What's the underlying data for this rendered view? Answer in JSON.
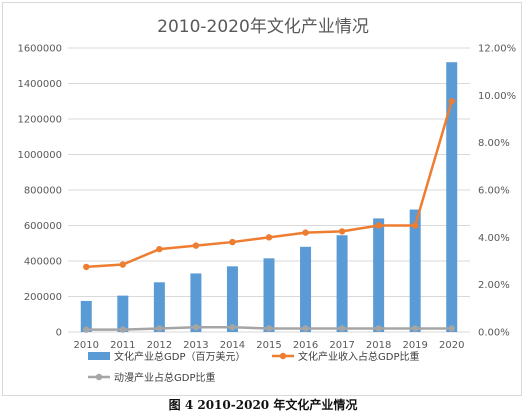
{
  "chart_data": {
    "type": "bar",
    "title": "2010-2020年文化产业情况",
    "categories": [
      "2010",
      "2011",
      "2012",
      "2013",
      "2014",
      "2015",
      "2016",
      "2017",
      "2018",
      "2019",
      "2020"
    ],
    "y_left": {
      "ylim": [
        0,
        1600000
      ],
      "ticks": [
        "0",
        "200000",
        "400000",
        "600000",
        "800000",
        "1000000",
        "1200000",
        "1400000",
        "1600000"
      ]
    },
    "y_right": {
      "ylim": [
        0,
        12
      ],
      "ticks": [
        "0.00%",
        "2.00%",
        "4.00%",
        "6.00%",
        "8.00%",
        "10.00%",
        "12.00%"
      ]
    },
    "series": [
      {
        "name": "文化产业总GDP（百万美元）",
        "type": "bar",
        "axis": "left",
        "color": "#5b9bd5",
        "values": [
          175000,
          205000,
          280000,
          330000,
          370000,
          415000,
          480000,
          545000,
          640000,
          690000,
          1520000
        ]
      },
      {
        "name": "文化产业收入占总GDP比重",
        "type": "line",
        "axis": "right",
        "color": "#ed7d31",
        "values": [
          2.75,
          2.85,
          3.5,
          3.65,
          3.8,
          4.0,
          4.2,
          4.25,
          4.5,
          4.5,
          9.75
        ]
      },
      {
        "name": "动漫产业占总GDP比重",
        "type": "line",
        "axis": "right",
        "color": "#a5a5a5",
        "values": [
          0.1,
          0.1,
          0.15,
          0.2,
          0.2,
          0.15,
          0.15,
          0.15,
          0.15,
          0.15,
          0.15
        ]
      }
    ],
    "legend_placement": "bottom",
    "grid": true
  },
  "caption": "图 4 2010-2020 年文化产业情况"
}
